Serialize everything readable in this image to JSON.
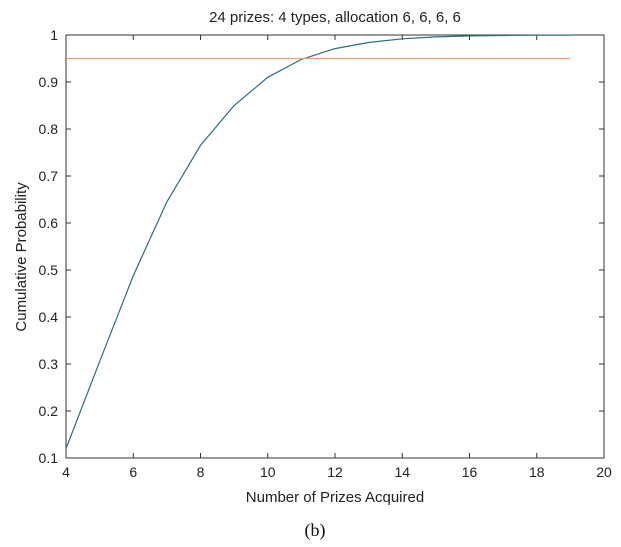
{
  "caption": "(b)",
  "chart_data": {
    "type": "line",
    "title": "24 prizes: 4 types, allocation 6, 6, 6, 6",
    "xlabel": "Number of Prizes Acquired",
    "ylabel": "Cumulative Probability",
    "xlim": [
      4,
      20
    ],
    "ylim": [
      0.1,
      1
    ],
    "xticks": [
      4,
      6,
      8,
      10,
      12,
      14,
      16,
      18,
      20
    ],
    "yticks": [
      0.1,
      0.2,
      0.3,
      0.4,
      0.5,
      0.6,
      0.7,
      0.8,
      0.9,
      1
    ],
    "ytick_labels": [
      "0.1",
      "0.2",
      "0.3",
      "0.4",
      "0.5",
      "0.6",
      "0.7",
      "0.8",
      "0.9",
      "1"
    ],
    "grid": false,
    "series": [
      {
        "color": "#2a6f7f",
        "x": [
          4,
          5,
          6,
          7,
          8,
          9,
          10,
          11,
          12,
          13,
          14,
          15,
          16,
          17,
          18,
          19
        ],
        "y": [
          0.12,
          0.305,
          0.488,
          0.645,
          0.765,
          0.85,
          0.91,
          0.948,
          0.971,
          0.984,
          0.992,
          0.996,
          0.998,
          0.999,
          0.9995,
          0.9998
        ]
      },
      {
        "color": "#f0a070",
        "x": [
          4,
          19
        ],
        "y": [
          0.95,
          0.95
        ]
      }
    ]
  }
}
